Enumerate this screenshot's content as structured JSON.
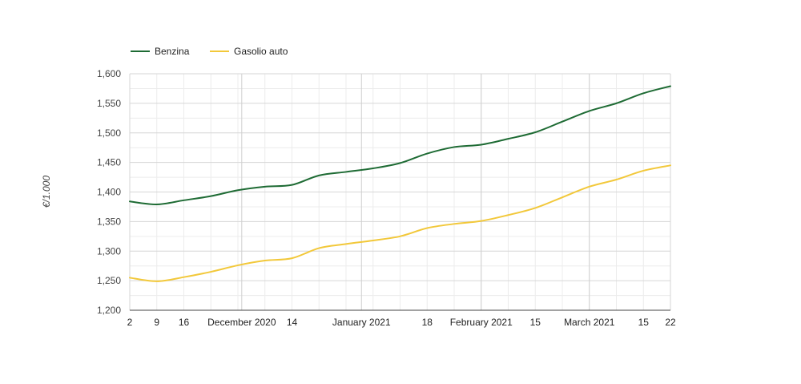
{
  "chart_data": {
    "type": "line",
    "ylabel": "€/1.000",
    "ylim": [
      1200,
      1600
    ],
    "y_ticks": [
      1200,
      1250,
      1300,
      1350,
      1400,
      1450,
      1500,
      1550,
      1600
    ],
    "y_tick_labels": [
      "1,200",
      "1,250",
      "1,300",
      "1,350",
      "1,400",
      "1,450",
      "1,500",
      "1,550",
      "1,600"
    ],
    "xlim": [
      "2020-11-02",
      "2021-03-22"
    ],
    "x_ticks": [
      {
        "date": "2020-11-02",
        "label": "2",
        "major": false
      },
      {
        "date": "2020-11-09",
        "label": "9",
        "major": false
      },
      {
        "date": "2020-11-16",
        "label": "16",
        "major": false
      },
      {
        "date": "2020-12-01",
        "label": "December 2020",
        "major": true
      },
      {
        "date": "2020-12-14",
        "label": "14",
        "major": false
      },
      {
        "date": "2021-01-01",
        "label": "January 2021",
        "major": true
      },
      {
        "date": "2021-01-18",
        "label": "18",
        "major": false
      },
      {
        "date": "2021-02-01",
        "label": "February 2021",
        "major": true
      },
      {
        "date": "2021-02-15",
        "label": "15",
        "major": false
      },
      {
        "date": "2021-03-01",
        "label": "March 2021",
        "major": true
      },
      {
        "date": "2021-03-15",
        "label": "15",
        "major": false
      },
      {
        "date": "2021-03-22",
        "label": "22",
        "major": false
      }
    ],
    "grid": true,
    "legend": "top-left",
    "series": [
      {
        "name": "Benzina",
        "color": "#1e6b34",
        "points": [
          [
            "2020-11-02",
            1384
          ],
          [
            "2020-11-09",
            1379
          ],
          [
            "2020-11-16",
            1386
          ],
          [
            "2020-11-23",
            1393
          ],
          [
            "2020-11-30",
            1403
          ],
          [
            "2020-12-07",
            1409
          ],
          [
            "2020-12-14",
            1412
          ],
          [
            "2020-12-21",
            1428
          ],
          [
            "2020-12-28",
            1434
          ],
          [
            "2021-01-04",
            1440
          ],
          [
            "2021-01-11",
            1449
          ],
          [
            "2021-01-18",
            1465
          ],
          [
            "2021-01-25",
            1476
          ],
          [
            "2021-02-01",
            1480
          ],
          [
            "2021-02-08",
            1490
          ],
          [
            "2021-02-15",
            1501
          ],
          [
            "2021-02-22",
            1519
          ],
          [
            "2021-03-01",
            1537
          ],
          [
            "2021-03-08",
            1550
          ],
          [
            "2021-03-15",
            1567
          ],
          [
            "2021-03-22",
            1579
          ]
        ]
      },
      {
        "name": "Gasolio auto",
        "color": "#f2c83a",
        "points": [
          [
            "2020-11-02",
            1255
          ],
          [
            "2020-11-09",
            1249
          ],
          [
            "2020-11-16",
            1256
          ],
          [
            "2020-11-23",
            1265
          ],
          [
            "2020-11-30",
            1276
          ],
          [
            "2020-12-07",
            1284
          ],
          [
            "2020-12-14",
            1288
          ],
          [
            "2020-12-21",
            1305
          ],
          [
            "2020-12-28",
            1312
          ],
          [
            "2021-01-04",
            1318
          ],
          [
            "2021-01-11",
            1325
          ],
          [
            "2021-01-18",
            1339
          ],
          [
            "2021-01-25",
            1346
          ],
          [
            "2021-02-01",
            1351
          ],
          [
            "2021-02-08",
            1361
          ],
          [
            "2021-02-15",
            1373
          ],
          [
            "2021-02-22",
            1391
          ],
          [
            "2021-03-01",
            1409
          ],
          [
            "2021-03-08",
            1421
          ],
          [
            "2021-03-15",
            1436
          ],
          [
            "2021-03-22",
            1445
          ]
        ]
      }
    ]
  }
}
